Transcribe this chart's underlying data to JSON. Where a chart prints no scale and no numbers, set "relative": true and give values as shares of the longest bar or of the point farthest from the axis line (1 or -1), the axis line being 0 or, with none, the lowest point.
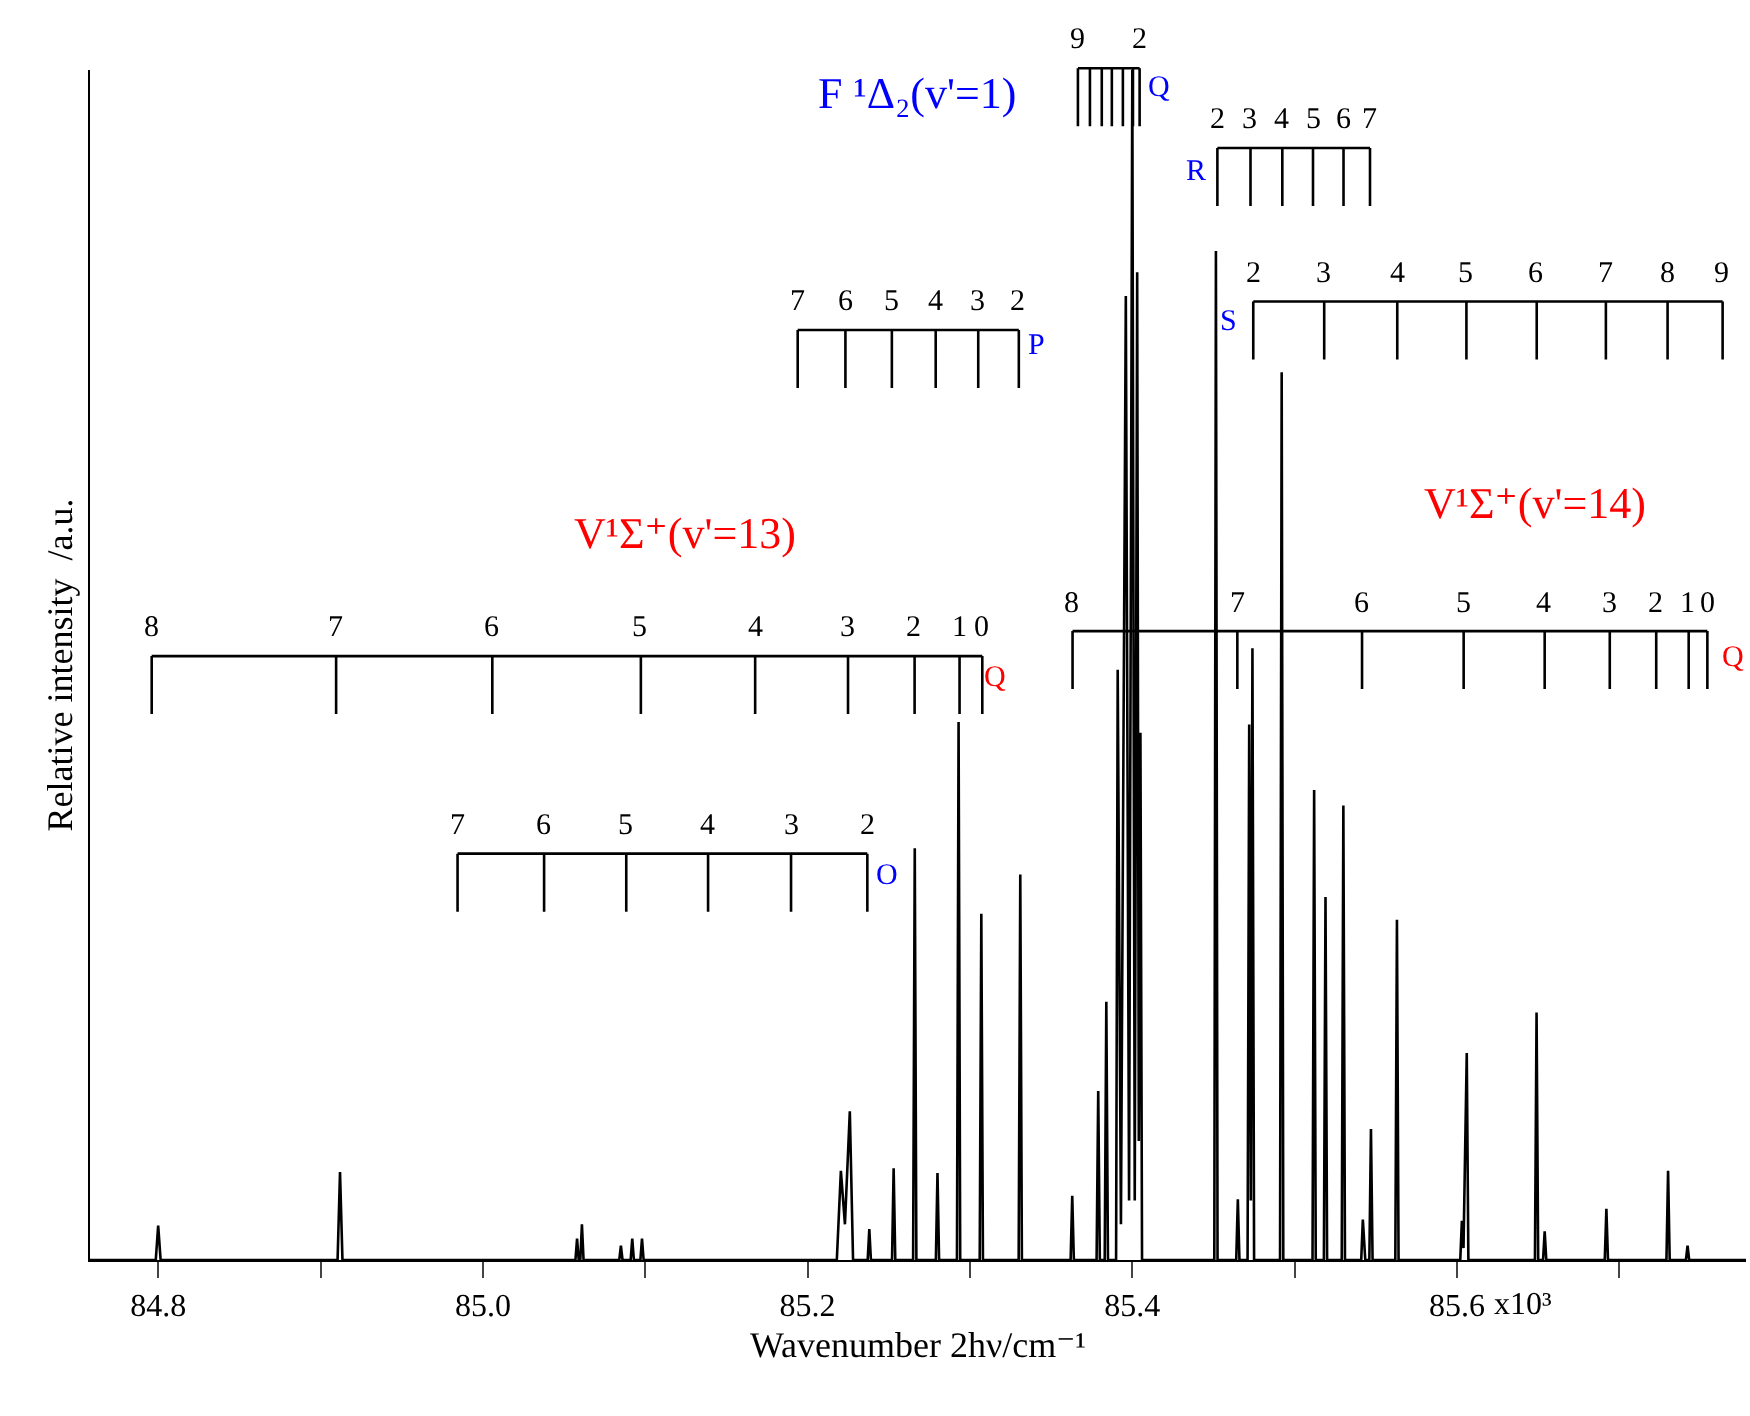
{
  "chart_data": {
    "type": "line",
    "relative": true,
    "color": "#000000",
    "xlabel": "Wavenumber 2hν/cm⁻¹",
    "ylabel": "Relative intensity  /a.u.",
    "xlim": [
      84.758,
      85.778
    ],
    "xticks": [
      84.8,
      {
        "value": 84.9,
        "label": null
      },
      {
        "value": 85.0,
        "label": "85.0"
      },
      {
        "value": 85.1,
        "label": null
      },
      85.2,
      {
        "value": 85.3,
        "label": null
      },
      85.4,
      {
        "value": 85.5,
        "label": null
      },
      85.6,
      {
        "value": 85.7,
        "label": null
      }
    ],
    "grid": false,
    "marker": "none",
    "line_style": "solid",
    "x": [
      84.758,
      84.7985,
      84.8,
      84.8015,
      84.9105,
      84.912,
      84.9135,
      85.057,
      85.058,
      85.059,
      85.06,
      85.061,
      85.062,
      85.084,
      85.085,
      85.086,
      85.091,
      85.092,
      85.093,
      85.097,
      85.098,
      85.099,
      85.218,
      85.2205,
      85.223,
      85.226,
      85.228,
      85.237,
      85.238,
      85.239,
      85.252,
      85.253,
      85.254,
      85.265,
      85.266,
      85.267,
      85.279,
      85.28,
      85.281,
      85.292,
      85.293,
      85.294,
      85.306,
      85.307,
      85.308,
      85.33,
      85.331,
      85.332,
      85.362,
      85.363,
      85.364,
      85.378,
      85.379,
      85.38,
      85.383,
      85.384,
      85.385,
      85.39,
      85.391,
      85.393,
      85.396,
      85.398,
      85.4,
      85.4015,
      85.403,
      85.404,
      85.405,
      85.406,
      85.4505,
      85.4515,
      85.4525,
      85.464,
      85.465,
      85.466,
      85.471,
      85.472,
      85.473,
      85.474,
      85.475,
      85.491,
      85.492,
      85.493,
      85.511,
      85.512,
      85.513,
      85.518,
      85.519,
      85.52,
      85.529,
      85.53,
      85.531,
      85.541,
      85.542,
      85.5435,
      85.546,
      85.547,
      85.548,
      85.562,
      85.563,
      85.564,
      85.602,
      85.603,
      85.604,
      85.606,
      85.607,
      85.648,
      85.649,
      85.65,
      85.653,
      85.654,
      85.655,
      85.691,
      85.692,
      85.693,
      85.729,
      85.73,
      85.731,
      85.741,
      85.742,
      85.743,
      85.778
    ],
    "values": [
      0,
      0,
      0.029,
      0,
      0,
      0.074,
      0,
      0,
      0.018,
      0,
      0,
      0.03,
      0,
      0,
      0.012,
      0,
      0,
      0.018,
      0,
      0,
      0.018,
      0,
      0,
      0.075,
      0.03,
      0.125,
      0,
      0,
      0.026,
      0,
      0,
      0.077,
      0,
      0,
      0.346,
      0,
      0,
      0.073,
      0,
      0,
      0.452,
      0,
      0,
      0.291,
      0,
      0,
      0.324,
      0,
      0,
      0.054,
      0,
      0,
      0.142,
      0,
      0,
      0.217,
      0,
      0,
      0.496,
      0.03,
      0.81,
      0.05,
      1,
      0.05,
      0.83,
      0.1,
      0.443,
      0,
      0,
      0.848,
      0,
      0,
      0.051,
      0,
      0,
      0.45,
      0.05,
      0.514,
      0,
      0,
      0.746,
      0,
      0,
      0.395,
      0,
      0,
      0.305,
      0,
      0,
      0.382,
      0,
      0,
      0.034,
      0,
      0,
      0.11,
      0,
      0,
      0.286,
      0,
      0,
      0.033,
      0.01,
      0.174,
      0,
      0,
      0.208,
      0,
      0,
      0.024,
      0,
      0,
      0.043,
      0,
      0,
      0.075,
      0,
      0,
      0.012,
      0,
      0
    ],
    "annotations": [
      "V¹Σ⁺(v'=13)",
      "8",
      "7",
      "6",
      "5",
      "4",
      "3",
      "2",
      "1",
      "0",
      "Q",
      "7",
      "6",
      "5",
      "4",
      "3",
      "2",
      "O",
      "7",
      "6",
      "5",
      "4",
      "3",
      "2",
      "P",
      "F ¹Δ₂(v'=1)",
      "9",
      "2",
      "Q",
      "2",
      "3",
      "4",
      "5",
      "6",
      "7",
      "R",
      "2",
      "3",
      "4",
      "5",
      "6",
      "7",
      "8",
      "9",
      "S",
      "V¹Σ⁺(v'=14)",
      "8",
      "7",
      "6",
      "5",
      "4",
      "3",
      "2",
      "1",
      "0",
      "Q",
      "x10³"
    ]
  }
}
